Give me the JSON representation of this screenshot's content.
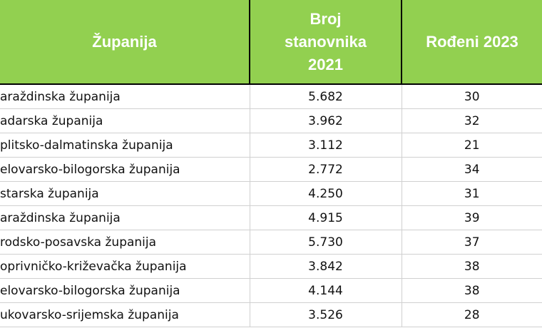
{
  "table": {
    "header": [
      "Županija",
      "Broj\nstanovnika\n2021",
      "Rođeni 2023"
    ],
    "rows": [
      [
        "araždinska županija",
        "5.682",
        "30"
      ],
      [
        "adarska županija",
        "3.962",
        "32"
      ],
      [
        "plitsko-dalmatinska županija",
        "3.112",
        "21"
      ],
      [
        "elovarsko-bilogorska županija",
        "2.772",
        "34"
      ],
      [
        "starska županija",
        "4.250",
        "31"
      ],
      [
        "araždinska županija",
        "4.915",
        "39"
      ],
      [
        "rodsko-posavska županija",
        "5.730",
        "37"
      ],
      [
        "oprivničko-križevačka županija",
        "3.842",
        "38"
      ],
      [
        "elovarsko-bilogorska županija",
        "4.144",
        "38"
      ],
      [
        "ukovarsko-srijemska županija",
        "3.526",
        "28"
      ]
    ]
  }
}
